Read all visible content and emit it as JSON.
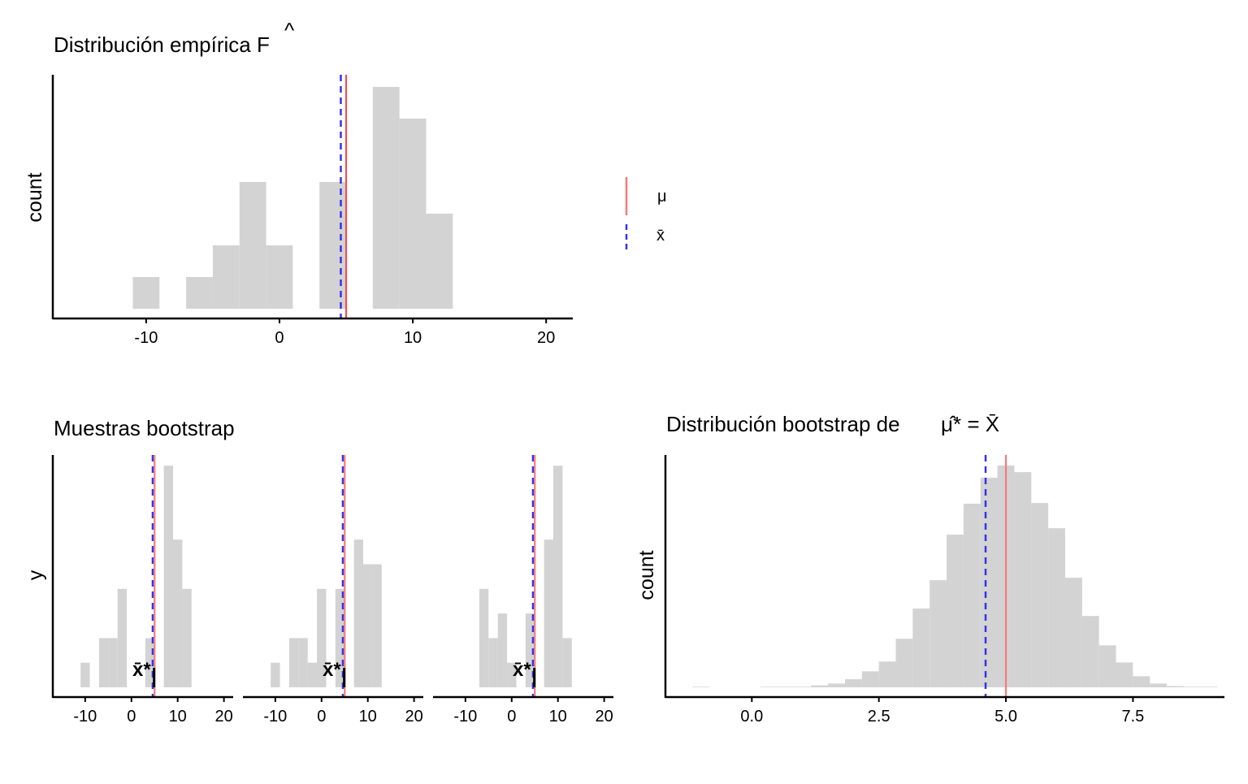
{
  "colors": {
    "bar": "#D3D3D3",
    "mu": "#F05050",
    "mu_light": "#F87A7A",
    "xbar": "#3333EE",
    "axis": "#000000"
  },
  "legend": {
    "items": [
      {
        "label": "μ",
        "style": "solid",
        "color": "#F05050"
      },
      {
        "label": "x̄",
        "style": "dashed",
        "color": "#3333EE"
      }
    ]
  },
  "chart_data": [
    {
      "type": "bar",
      "title": "Distribución empírica F",
      "title_hat": "^",
      "ylabel": "count",
      "xlabel": "",
      "bin_width": 2,
      "bin_start": -11,
      "counts": [
        1,
        0,
        1,
        2,
        4,
        2,
        0,
        4,
        0,
        7,
        6,
        3
      ],
      "xlim": [
        -17,
        22
      ],
      "xticks": [
        -10,
        0,
        10,
        20
      ],
      "xtick_labels": [
        "-10",
        "0",
        "10",
        "20"
      ],
      "mu": 5,
      "xbar": 4.6
    },
    {
      "type": "bar",
      "title": "Muestras bootstrap",
      "ylabel": "y",
      "xlim": [
        -17,
        22
      ],
      "xticks": [
        -10,
        0,
        10,
        20
      ],
      "xtick_labels": [
        "-10",
        "0",
        "10",
        "20"
      ],
      "bin_width": 2,
      "bin_start": -11,
      "mu": 5,
      "xbar": 4.6,
      "annotation": "x̄*",
      "panels": [
        {
          "counts": [
            1,
            0,
            2,
            2,
            4,
            0,
            0,
            2,
            0,
            9,
            6,
            4
          ],
          "xbar_star": 4.9
        },
        {
          "counts": [
            1,
            0,
            2,
            2,
            1,
            4,
            0,
            4,
            0,
            6,
            5,
            5
          ],
          "xbar_star": 4.9
        },
        {
          "counts": [
            0,
            0,
            4,
            2,
            3,
            1,
            0,
            3,
            0,
            6,
            9,
            2
          ],
          "xbar_star": 4.9
        }
      ]
    },
    {
      "type": "bar",
      "title": "Distribución bootstrap de",
      "title_math": "μ̂* = X̄",
      "ylabel": "count",
      "bin_width": 0.3333,
      "bin_start": -1.1667,
      "counts": [
        3,
        0,
        0,
        0,
        3,
        3,
        3,
        10,
        20,
        43,
        85,
        137,
        258,
        418,
        569,
        811,
        975,
        1113,
        1178,
        1143,
        979,
        845,
        582,
        379,
        223,
        132,
        59,
        20,
        7,
        3,
        3
      ],
      "xlim": [
        -1.7,
        9.3
      ],
      "xticks": [
        0,
        2.5,
        5,
        7.5
      ],
      "xtick_labels": [
        "0.0",
        "2.5",
        "5.0",
        "7.5"
      ],
      "mu": 5,
      "xbar": 4.6
    }
  ]
}
